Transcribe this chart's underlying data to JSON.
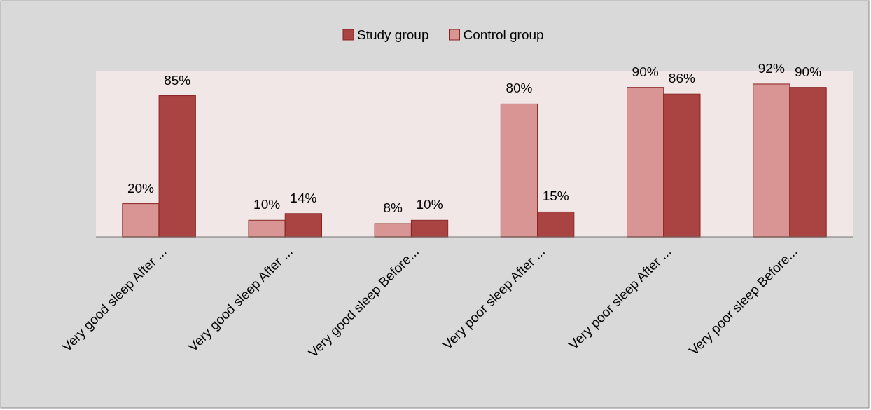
{
  "chart_data": {
    "type": "bar",
    "categories": [
      "Very good sleep After ...",
      "Very good sleep After ...",
      "Very good sleep Before...",
      "Very poor sleep After ...",
      "Very poor sleep After ...",
      "Very poor sleep Before..."
    ],
    "series": [
      {
        "name": "Control group",
        "color": "#d99594",
        "values": [
          20,
          10,
          8,
          80,
          90,
          92
        ],
        "value_labels": [
          "20%",
          "10%",
          "8%",
          "80%",
          "90%",
          "92%"
        ]
      },
      {
        "name": "Study group",
        "color": "#a94442",
        "values": [
          85,
          14,
          10,
          15,
          86,
          90
        ],
        "value_labels": [
          "85%",
          "14%",
          "10%",
          "15%",
          "86%",
          "90%"
        ]
      }
    ],
    "ylim": [
      0,
      100
    ],
    "tick_labels": "x",
    "legend": "top"
  }
}
